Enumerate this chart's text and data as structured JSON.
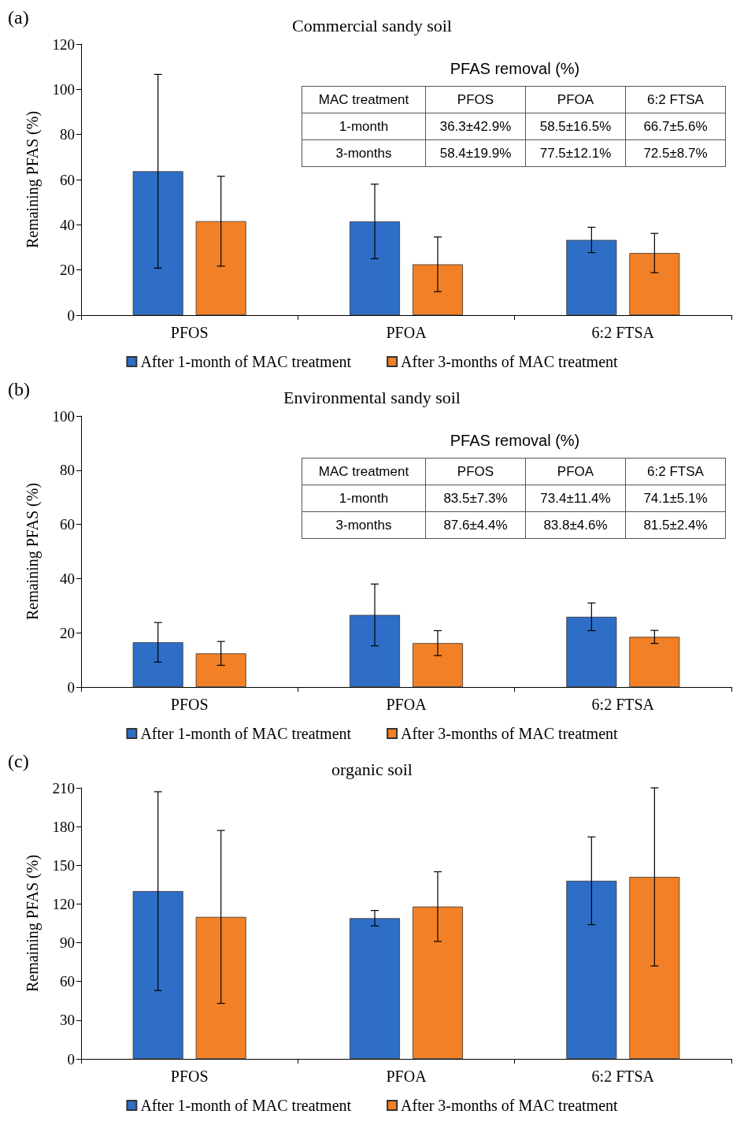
{
  "chart_data": [
    {
      "type": "bar",
      "title": "Commercial sandy soil",
      "ylabel": "Remaining PFAS (%)",
      "categories": [
        "PFOS",
        "PFOA",
        "6:2 FTSA"
      ],
      "ylim": [
        0,
        120
      ],
      "yticks": [
        0,
        20,
        40,
        60,
        80,
        100,
        120
      ],
      "grid": false,
      "legend": "bottom",
      "series": [
        {
          "name": "After 1-month of MAC treatment",
          "color": "#2e6ec6",
          "values": [
            63.7,
            41.5,
            33.3
          ],
          "errors": [
            42.9,
            16.5,
            5.6
          ]
        },
        {
          "name": "After 3-months of MAC treatment",
          "color": "#f28026",
          "values": [
            41.6,
            22.5,
            27.5
          ],
          "errors": [
            19.9,
            12.1,
            8.7
          ]
        }
      ],
      "annotations": [
        "(a)",
        "PFAS removal (%)",
        "MAC treatment",
        "PFOS",
        "PFOA",
        "6:2 FTSA",
        "1-month",
        "36.3±42.9%",
        "58.5±16.5%",
        "66.7±5.6%",
        "3-months",
        "58.4±19.9%",
        "77.5±12.1%",
        "72.5±8.7%"
      ]
    },
    {
      "type": "bar",
      "title": "Environmental sandy soil",
      "ylabel": "Remaining PFAS (%)",
      "categories": [
        "PFOS",
        "PFOA",
        "6:2 FTSA"
      ],
      "ylim": [
        0,
        100
      ],
      "yticks": [
        0,
        20,
        40,
        60,
        80,
        100
      ],
      "grid": false,
      "legend": "bottom",
      "series": [
        {
          "name": "After 1-month of MAC treatment",
          "color": "#2e6ec6",
          "values": [
            16.5,
            26.6,
            25.9
          ],
          "errors": [
            7.3,
            11.4,
            5.1
          ]
        },
        {
          "name": "After 3-months of MAC treatment",
          "color": "#f28026",
          "values": [
            12.4,
            16.2,
            18.5
          ],
          "errors": [
            4.4,
            4.6,
            2.4
          ]
        }
      ],
      "annotations": [
        "(b)",
        "PFAS removal (%)",
        "MAC treatment",
        "PFOS",
        "PFOA",
        "6:2 FTSA",
        "1-month",
        "83.5±7.3%",
        "73.4±11.4%",
        "74.1±5.1%",
        "3-months",
        "87.6±4.4%",
        "83.8±4.6%",
        "81.5±2.4%"
      ]
    },
    {
      "type": "bar",
      "title": "organic soil",
      "ylabel": "Remaining PFAS (%)",
      "categories": [
        "PFOS",
        "PFOA",
        "6:2 FTSA"
      ],
      "ylim": [
        0,
        210
      ],
      "yticks": [
        0,
        30,
        60,
        90,
        120,
        150,
        180,
        210
      ],
      "grid": false,
      "legend": "bottom",
      "series": [
        {
          "name": "After 1-month of MAC treatment",
          "color": "#2e6ec6",
          "values": [
            130,
            109,
            138
          ],
          "errors": [
            77,
            6,
            34
          ]
        },
        {
          "name": "After 3-months of MAC treatment",
          "color": "#f28026",
          "values": [
            110,
            118,
            141
          ],
          "errors": [
            67,
            27,
            69
          ]
        }
      ],
      "annotations": [
        "(c)"
      ]
    }
  ]
}
